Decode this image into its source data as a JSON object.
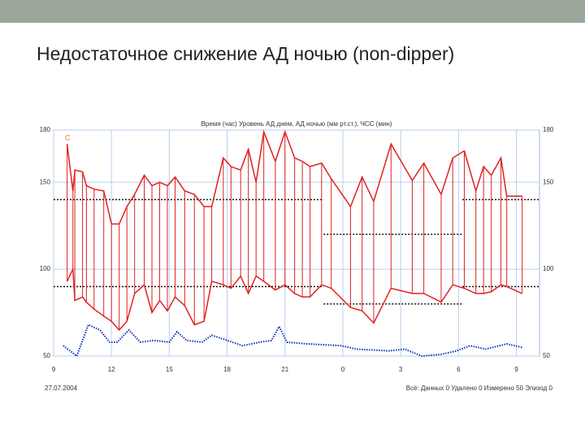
{
  "page": {
    "title": "Недостаточное снижение АД ночью (non-dipper)"
  },
  "chart_data": {
    "type": "line",
    "title": "Время (час) Уровень АД днем, АД ночью (мм рт.ст.), ЧСС (мин)",
    "marker_label": "C",
    "date": "27.07.2004",
    "footer": "Всё: Данных 0 Удалено 0 Измерено 50 Эпизод 0",
    "xlim": [
      9,
      34.2
    ],
    "xticks": [
      9,
      12,
      15,
      18,
      21,
      {
        "value": 24,
        "label": "0"
      },
      {
        "value": 27,
        "label": "3"
      },
      {
        "value": 30,
        "label": "6"
      },
      {
        "value": 33,
        "label": "9"
      }
    ],
    "ylim": [
      50,
      180
    ],
    "yticks": [
      50,
      100,
      150,
      180
    ],
    "grid": true,
    "x": [
      9.7,
      10.0,
      10.1,
      10.5,
      10.7,
      11.1,
      11.6,
      12.0,
      12.4,
      12.8,
      13.2,
      13.7,
      14.1,
      14.5,
      14.9,
      15.3,
      15.8,
      16.3,
      16.8,
      17.2,
      17.8,
      18.2,
      18.7,
      19.1,
      19.5,
      19.9,
      20.5,
      21.0,
      21.5,
      21.9,
      22.3,
      22.9,
      23.4,
      24.4,
      25.0,
      25.6,
      26.5,
      27.6,
      28.2,
      29.1,
      29.7,
      30.3,
      30.9,
      31.3,
      31.7,
      32.2,
      32.5,
      33.3
    ],
    "series": [
      {
        "color": "#e02020",
        "values": [
          172,
          145,
          157,
          156,
          148,
          146,
          145,
          126,
          126,
          136,
          143,
          154,
          148,
          150,
          148,
          153,
          145,
          143,
          136,
          136,
          164,
          159,
          157,
          169,
          150,
          179,
          162,
          179,
          164,
          162,
          159,
          161,
          152,
          136,
          153,
          139,
          172,
          151,
          161,
          143,
          164,
          168,
          145,
          159,
          154,
          164,
          142,
          142
        ]
      },
      {
        "color": "#e02020",
        "values": [
          93,
          100,
          82,
          84,
          81,
          77,
          73,
          70,
          65,
          70,
          86,
          91,
          75,
          82,
          76,
          84,
          79,
          68,
          70,
          93,
          91,
          89,
          96,
          86,
          96,
          93,
          88,
          91,
          86,
          84,
          84,
          91,
          89,
          78,
          76,
          69,
          89,
          86,
          86,
          81,
          91,
          89,
          86,
          86,
          87,
          91,
          90,
          86
        ]
      },
      {
        "color": "#1030c0",
        "dotted": true,
        "x": [
          9.5,
          10.2,
          10.8,
          11.4,
          11.9,
          12.3,
          12.9,
          13.5,
          14.2,
          15.0,
          15.4,
          15.9,
          16.7,
          17.2,
          18.0,
          18.8,
          19.7,
          20.3,
          20.7,
          21.1,
          22.2,
          23.9,
          24.7,
          26.4,
          27.2,
          28.1,
          29.1,
          29.9,
          30.6,
          31.4,
          32.5,
          33.3
        ],
        "values": [
          56,
          50,
          68,
          65,
          58,
          58,
          65,
          58,
          59,
          58,
          64,
          59,
          58,
          62,
          59,
          56,
          58,
          59,
          67,
          58,
          57,
          56,
          54,
          53,
          54,
          50,
          51,
          53,
          56,
          54,
          57,
          55
        ]
      }
    ],
    "thresholds": [
      {
        "value": 140,
        "x": [
          9,
          23.0
        ]
      },
      {
        "value": 90,
        "x": [
          9,
          23.0
        ]
      },
      {
        "value": 120,
        "x": [
          23.0,
          30.2
        ]
      },
      {
        "value": 80,
        "x": [
          23.0,
          30.2
        ]
      },
      {
        "value": 140,
        "x": [
          30.2,
          34.2
        ]
      },
      {
        "value": 90,
        "x": [
          30.2,
          34.2
        ]
      }
    ]
  }
}
